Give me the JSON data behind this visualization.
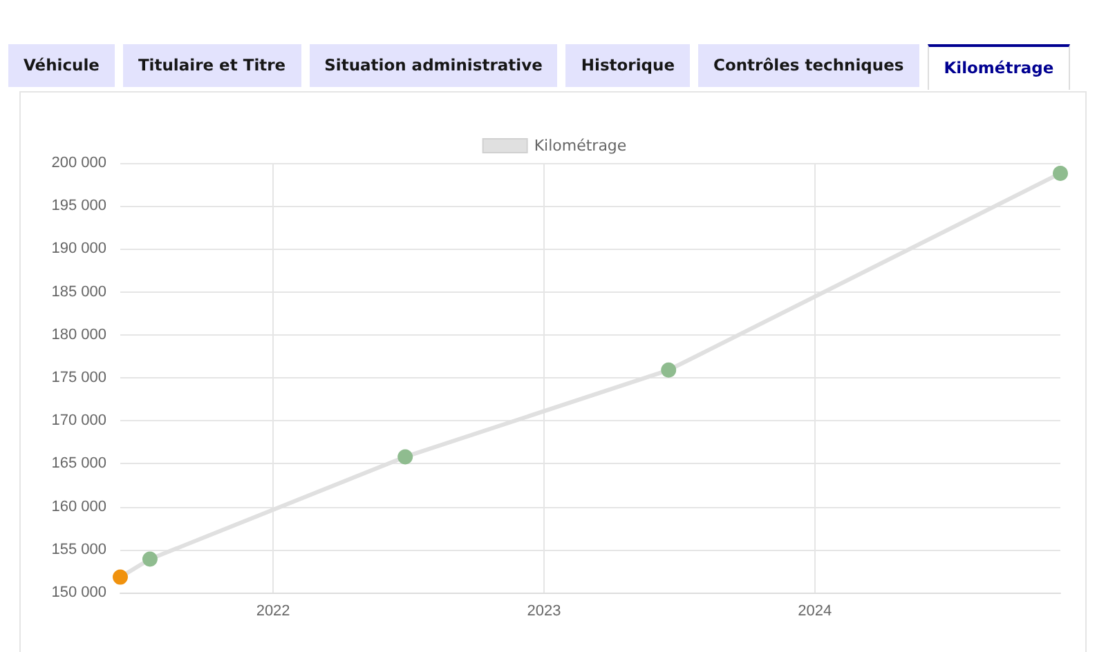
{
  "chart_data": {
    "type": "line",
    "annotations": [
      "Véhicule",
      "Titulaire et Titre",
      "Situation administrative",
      "Historique",
      "Contrôles techniques",
      "Kilométrage"
    ],
    "series": [
      {
        "name": "Kilométrage",
        "color": "#e0e0e0",
        "colors": [
          "#f0920e",
          "#8fbc8f",
          "#8fbc8f",
          "#8fbc8f",
          "#8fbc8f"
        ],
        "x": [
          "2021-06-09",
          "2021-07-19",
          "2022-06-28",
          "2023-06-18",
          "2024-11-27"
        ],
        "values": [
          151800,
          153900,
          165800,
          175900,
          198800
        ]
      }
    ],
    "xlim": [
      "2021-06-09",
      "2024-11-27"
    ],
    "xticks": [
      "2022",
      "2023",
      "2024"
    ],
    "ylim": [
      150000,
      200000
    ],
    "yticks": [
      {
        "value": 150000,
        "label": "150 000"
      },
      {
        "value": 155000,
        "label": "155 000"
      },
      {
        "value": 160000,
        "label": "160 000"
      },
      {
        "value": 165000,
        "label": "165 000"
      },
      {
        "value": 170000,
        "label": "170 000"
      },
      {
        "value": 175000,
        "label": "175 000"
      },
      {
        "value": 180000,
        "label": "180 000"
      },
      {
        "value": 185000,
        "label": "185 000"
      },
      {
        "value": 190000,
        "label": "190 000"
      },
      {
        "value": 195000,
        "label": "195 000"
      },
      {
        "value": 200000,
        "label": "200 000"
      }
    ],
    "grid": true,
    "legend": "top",
    "marker": "circle",
    "line_style": "solid"
  }
}
